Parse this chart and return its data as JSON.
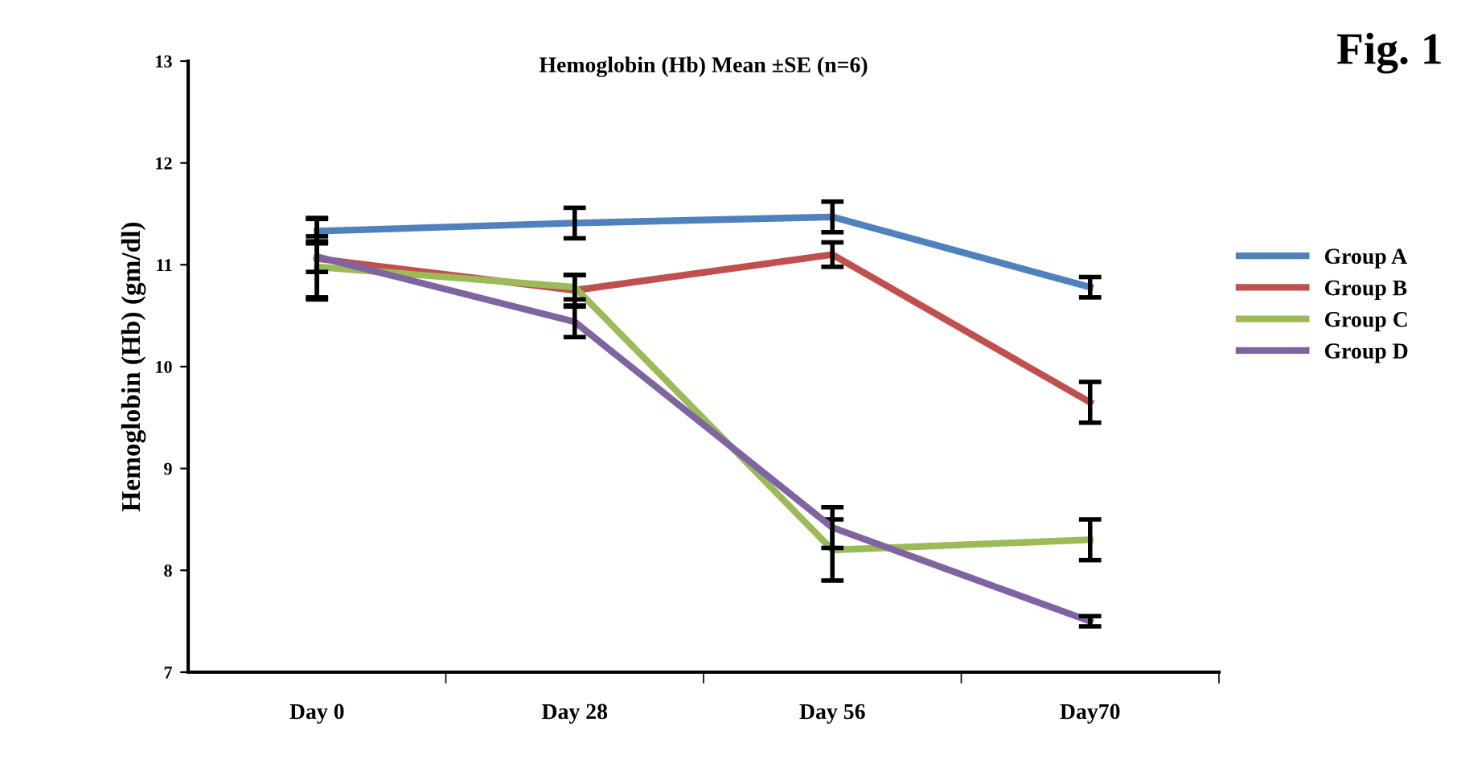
{
  "chart_data": {
    "type": "line",
    "title": "Hemoglobin (Hb) Mean ±SE (n=6)",
    "ylabel": "Hemoglobin (Hb) (gm/dl)",
    "annotations": [
      "Fig. 1"
    ],
    "categories": [
      "Day 0",
      "Day 28",
      "Day 56",
      "Day70"
    ],
    "series": [
      {
        "name": "Group A",
        "color": "#4f81bd",
        "values": [
          11.33,
          11.41,
          11.47,
          10.78
        ],
        "errors": [
          0.12,
          0.15,
          0.15,
          0.1
        ]
      },
      {
        "name": "Group B",
        "color": "#c0504d",
        "values": [
          11.06,
          10.75,
          11.1,
          9.65
        ],
        "errors": [
          0.4,
          0.15,
          0.12,
          0.2
        ]
      },
      {
        "name": "Group C",
        "color": "#9bbb59",
        "values": [
          10.98,
          10.78,
          8.2,
          8.3
        ],
        "errors": [
          0.3,
          0.12,
          0.3,
          0.2
        ]
      },
      {
        "name": "Group D",
        "color": "#8064a2",
        "values": [
          11.08,
          10.44,
          8.42,
          7.5
        ],
        "errors": [
          0.15,
          0.15,
          0.2,
          0.05
        ]
      }
    ],
    "ylim": [
      7,
      13
    ],
    "yticks": [
      7,
      8,
      9,
      10,
      11,
      12,
      13
    ],
    "grid": false,
    "legend": "right",
    "marker": "none",
    "line_style": "solid"
  }
}
